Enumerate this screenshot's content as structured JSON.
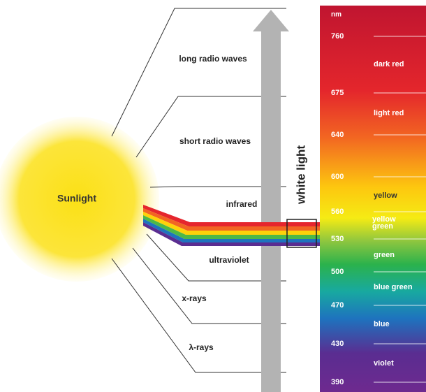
{
  "sun_label": "Sunlight",
  "bands": [
    "long radio waves",
    "short radio waves",
    "infrared",
    "ultraviolet",
    "x-rays",
    "λ-rays"
  ],
  "arrow_label": "white light",
  "spectrum": {
    "unit": "nm",
    "wavelengths": [
      "760",
      "675",
      "640",
      "600",
      "560",
      "530",
      "500",
      "470",
      "430",
      "390"
    ],
    "colors": [
      "dark red",
      "light red",
      "yellow",
      "yellow green",
      "green",
      "blue green",
      "blue",
      "violet"
    ]
  }
}
